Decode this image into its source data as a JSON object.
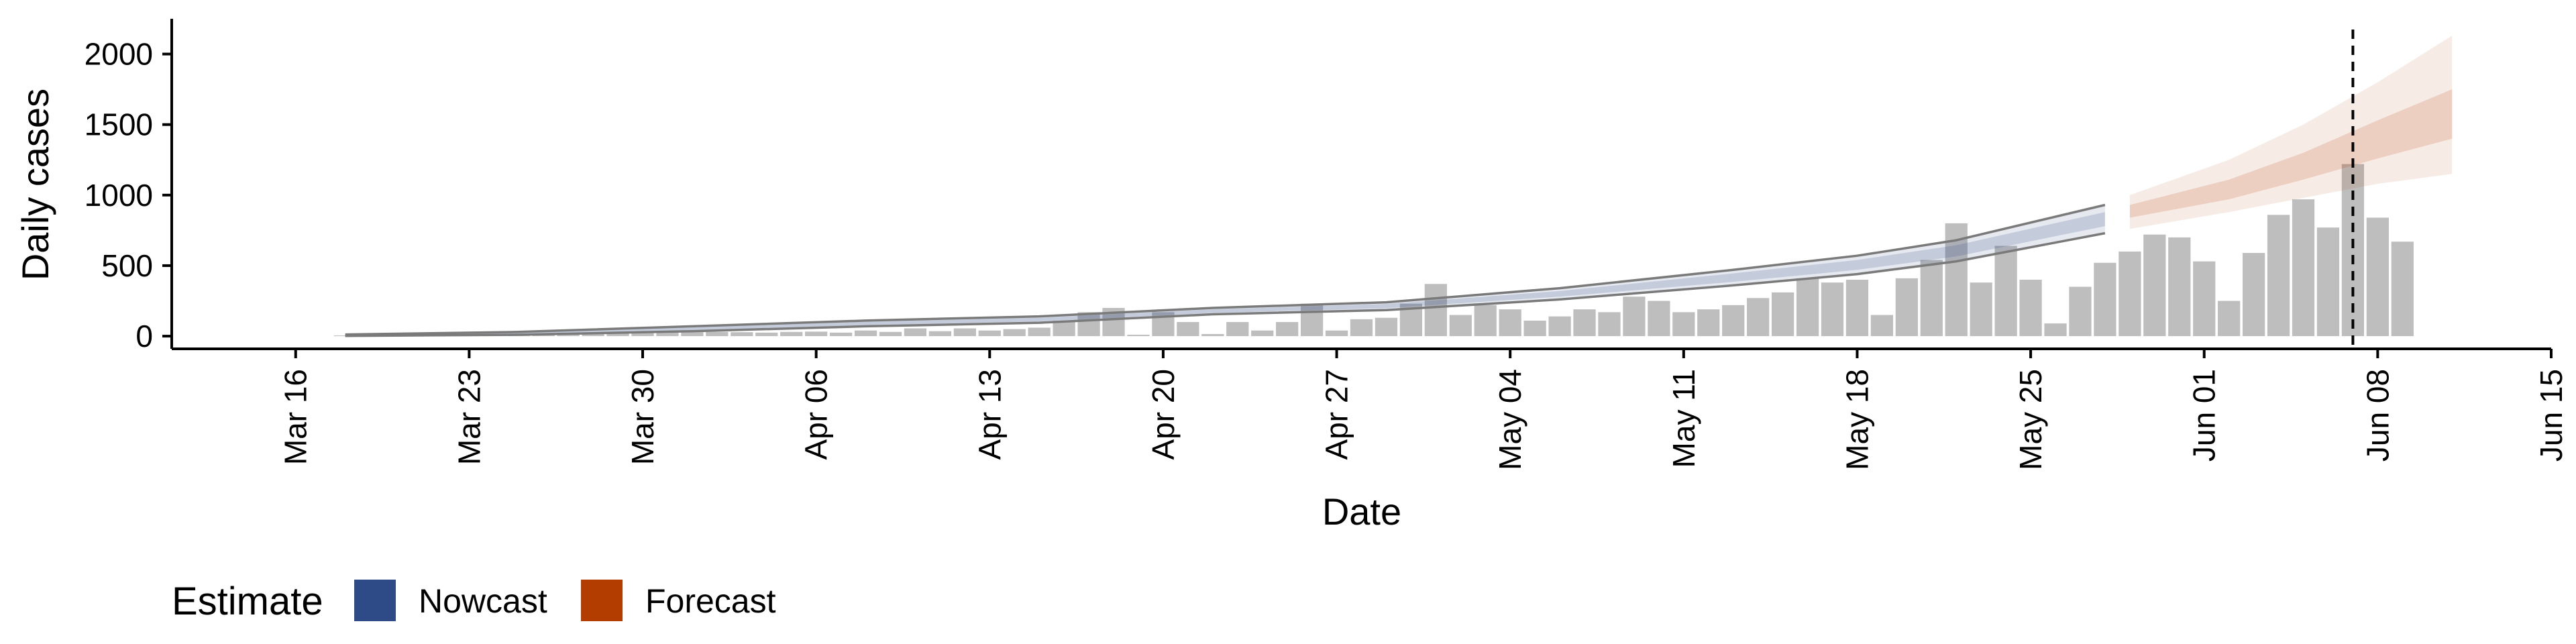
{
  "chart_data": {
    "type": "bar",
    "xlabel": "Date",
    "ylabel": "Daily cases",
    "x_range": [
      "2020-03-11",
      "2020-06-15"
    ],
    "ylim": [
      -90,
      2250
    ],
    "x_ticks": [
      {
        "date": "2020-03-16",
        "label": "Mar 16"
      },
      {
        "date": "2020-03-23",
        "label": "Mar 23"
      },
      {
        "date": "2020-03-30",
        "label": "Mar 30"
      },
      {
        "date": "2020-04-06",
        "label": "Apr 06"
      },
      {
        "date": "2020-04-13",
        "label": "Apr 13"
      },
      {
        "date": "2020-04-20",
        "label": "Apr 20"
      },
      {
        "date": "2020-04-27",
        "label": "Apr 27"
      },
      {
        "date": "2020-05-04",
        "label": "May 04"
      },
      {
        "date": "2020-05-11",
        "label": "May 11"
      },
      {
        "date": "2020-05-18",
        "label": "May 18"
      },
      {
        "date": "2020-05-25",
        "label": "May 25"
      },
      {
        "date": "2020-06-01",
        "label": "Jun 01"
      },
      {
        "date": "2020-06-08",
        "label": "Jun 08"
      },
      {
        "date": "2020-06-15",
        "label": "Jun 15"
      }
    ],
    "y_ticks": [
      0,
      500,
      1000,
      1500,
      2000
    ],
    "vline_date": "2020-06-07",
    "bar_color": "#bebebe",
    "bars": {
      "start_date": "2020-03-18",
      "values": [
        5,
        6,
        7,
        8,
        9,
        10,
        12,
        14,
        16,
        18,
        20,
        22,
        24,
        26,
        28,
        30,
        28,
        25,
        30,
        32,
        25,
        40,
        30,
        55,
        35,
        55,
        40,
        50,
        60,
        110,
        170,
        200,
        10,
        170,
        100,
        15,
        100,
        40,
        100,
        230,
        40,
        120,
        130,
        230,
        370,
        150,
        220,
        190,
        110,
        140,
        190,
        170,
        280,
        250,
        170,
        190,
        220,
        270,
        310,
        410,
        380,
        400,
        150,
        410,
        540,
        800,
        380,
        640,
        400,
        90,
        350,
        520,
        600,
        720,
        700,
        530,
        250,
        590,
        860,
        970,
        770,
        1220,
        840,
        670
      ]
    },
    "nowcast": {
      "name": "Nowcast",
      "color": "#2e4a87",
      "start_date": "2020-03-18",
      "end_date": "2020-05-28",
      "outer_band": [
        {
          "date": "2020-03-18",
          "lower": 2,
          "upper": 12
        },
        {
          "date": "2020-03-25",
          "lower": 10,
          "upper": 30
        },
        {
          "date": "2020-04-01",
          "lower": 35,
          "upper": 70
        },
        {
          "date": "2020-04-08",
          "lower": 70,
          "upper": 110
        },
        {
          "date": "2020-04-15",
          "lower": 95,
          "upper": 140
        },
        {
          "date": "2020-04-22",
          "lower": 155,
          "upper": 200
        },
        {
          "date": "2020-04-29",
          "lower": 185,
          "upper": 240
        },
        {
          "date": "2020-05-06",
          "lower": 260,
          "upper": 340
        },
        {
          "date": "2020-05-13",
          "lower": 360,
          "upper": 470
        },
        {
          "date": "2020-05-18",
          "lower": 440,
          "upper": 570
        },
        {
          "date": "2020-05-22",
          "lower": 530,
          "upper": 680
        },
        {
          "date": "2020-05-28",
          "lower": 730,
          "upper": 930
        }
      ],
      "inner_band": [
        {
          "date": "2020-03-18",
          "lower": 4,
          "upper": 9
        },
        {
          "date": "2020-03-25",
          "lower": 14,
          "upper": 25
        },
        {
          "date": "2020-04-01",
          "lower": 42,
          "upper": 62
        },
        {
          "date": "2020-04-08",
          "lower": 78,
          "upper": 102
        },
        {
          "date": "2020-04-15",
          "lower": 105,
          "upper": 130
        },
        {
          "date": "2020-04-22",
          "lower": 165,
          "upper": 190
        },
        {
          "date": "2020-04-29",
          "lower": 198,
          "upper": 228
        },
        {
          "date": "2020-05-06",
          "lower": 280,
          "upper": 320
        },
        {
          "date": "2020-05-13",
          "lower": 385,
          "upper": 445
        },
        {
          "date": "2020-05-18",
          "lower": 470,
          "upper": 540
        },
        {
          "date": "2020-05-22",
          "lower": 565,
          "upper": 645
        },
        {
          "date": "2020-05-28",
          "lower": 780,
          "upper": 880
        }
      ]
    },
    "forecast": {
      "name": "Forecast",
      "color": "#b33d00",
      "start_date": "2020-05-29",
      "end_date": "2020-06-11",
      "outer_band": [
        {
          "date": "2020-05-29",
          "lower": 760,
          "upper": 1000
        },
        {
          "date": "2020-06-02",
          "lower": 880,
          "upper": 1250
        },
        {
          "date": "2020-06-05",
          "lower": 980,
          "upper": 1500
        },
        {
          "date": "2020-06-08",
          "lower": 1080,
          "upper": 1800
        },
        {
          "date": "2020-06-11",
          "lower": 1150,
          "upper": 2130
        }
      ],
      "inner_band": [
        {
          "date": "2020-05-29",
          "lower": 840,
          "upper": 930
        },
        {
          "date": "2020-06-02",
          "lower": 970,
          "upper": 1110
        },
        {
          "date": "2020-06-05",
          "lower": 1110,
          "upper": 1300
        },
        {
          "date": "2020-06-08",
          "lower": 1260,
          "upper": 1530
        },
        {
          "date": "2020-06-11",
          "lower": 1400,
          "upper": 1750
        }
      ]
    },
    "legend": {
      "title": "Estimate",
      "position": "bottom-left",
      "items": [
        {
          "label": "Nowcast",
          "color": "#2e4a87"
        },
        {
          "label": "Forecast",
          "color": "#b33d00"
        }
      ]
    }
  }
}
